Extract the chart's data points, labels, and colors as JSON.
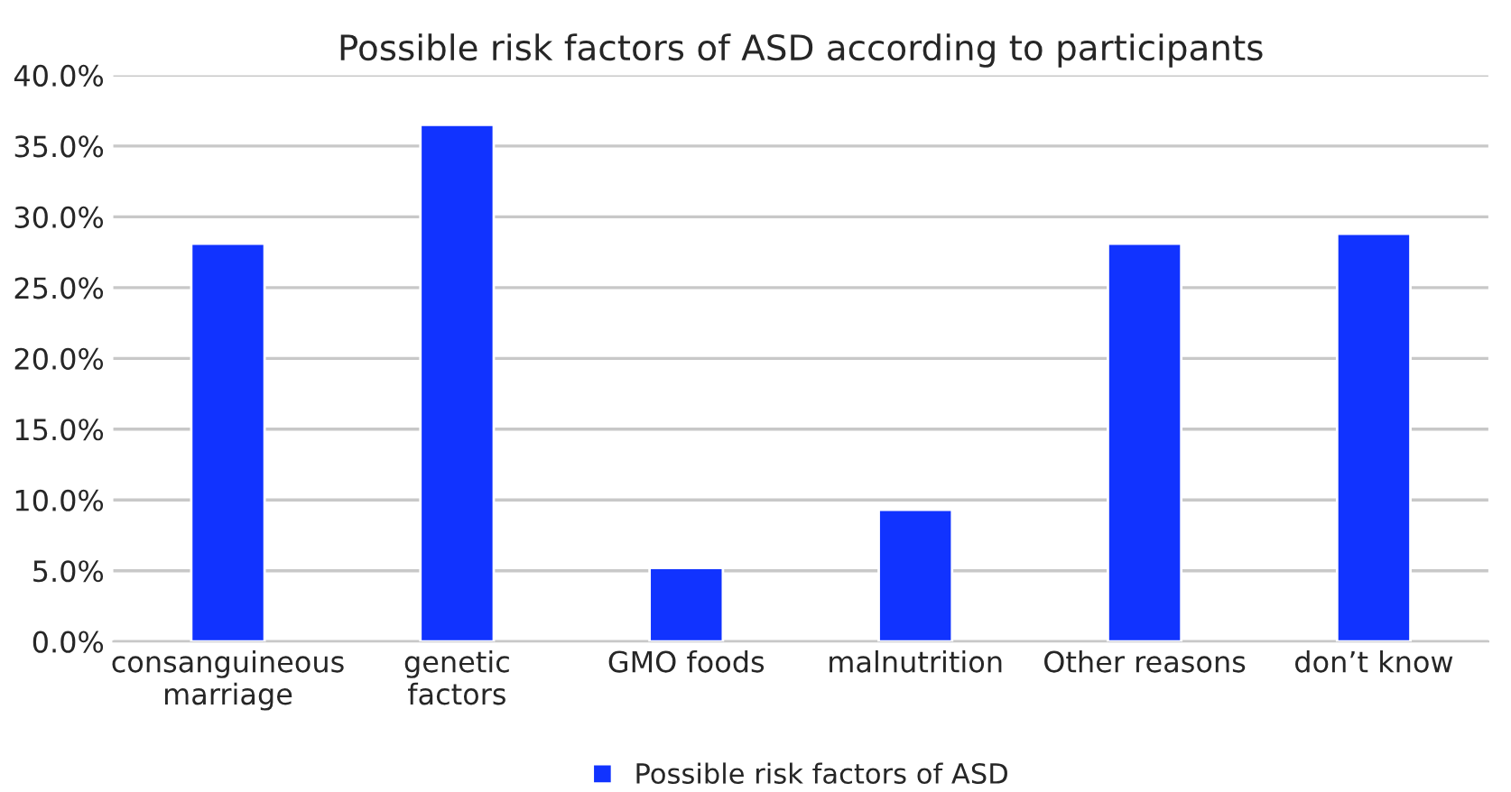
{
  "chart_data": {
    "type": "bar",
    "title": "Possible risk factors of ASD according to participants",
    "categories": [
      "consanguineous\nmarriage",
      "genetic\nfactors",
      "GMO foods",
      "malnutrition",
      "Other reasons",
      "don’t know"
    ],
    "series": [
      {
        "name": "Possible risk factors of ASD",
        "color": "#1133ff",
        "values": [
          28.1,
          36.5,
          5.2,
          9.3,
          28.1,
          28.8
        ]
      }
    ],
    "ylim": [
      0,
      40
    ],
    "yticks": [
      {
        "value": 0,
        "label": "0.0%"
      },
      {
        "value": 5,
        "label": "5.0%"
      },
      {
        "value": 10,
        "label": "10.0%"
      },
      {
        "value": 15,
        "label": "15.0%"
      },
      {
        "value": 20,
        "label": "20.0%"
      },
      {
        "value": 25,
        "label": "25.0%"
      },
      {
        "value": 30,
        "label": "30.0%"
      },
      {
        "value": 35,
        "label": "35.0%"
      },
      {
        "value": 40,
        "label": "40.0%"
      }
    ],
    "grid": "y",
    "legend": "bottom"
  }
}
